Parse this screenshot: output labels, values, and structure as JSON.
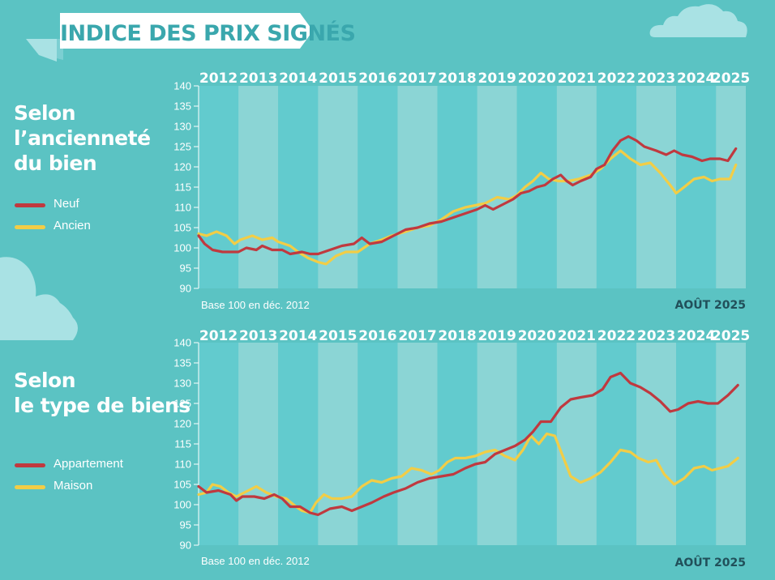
{
  "page_title": "INDICE DES PRIX SIGNÉS",
  "colors": {
    "background": "#5bc3c3",
    "band_light": "#8bd5d5",
    "band_dark": "#62cbce",
    "red_series": "#c0393f",
    "yellow_series": "#f2cd46"
  },
  "chart_data": [
    {
      "type": "line",
      "title": "Selon l’ancienneté du bien",
      "title_lines": [
        "Selon",
        "l’ancienneté",
        "du bien"
      ],
      "years": [
        "2012",
        "2013",
        "2014",
        "2015",
        "2016",
        "2017",
        "2018",
        "2019",
        "2020",
        "2021",
        "2022",
        "2023",
        "2024",
        "2025"
      ],
      "yticks": [
        90,
        95,
        100,
        105,
        110,
        115,
        120,
        125,
        130,
        135,
        140
      ],
      "ylim": [
        90,
        140
      ],
      "xlim": [
        2012,
        2025.75
      ],
      "note": "Base 100 en déc. 2012",
      "date": "AOÛT 2025",
      "legend": [
        {
          "name": "Neuf",
          "color": "#c0393f"
        },
        {
          "name": "Ancien",
          "color": "#f2cd46"
        }
      ],
      "series": [
        {
          "name": "Neuf",
          "color": "#c0393f",
          "points": [
            [
              2012.0,
              103
            ],
            [
              2012.15,
              101
            ],
            [
              2012.35,
              99.5
            ],
            [
              2012.6,
              99
            ],
            [
              2013.0,
              99
            ],
            [
              2013.2,
              100
            ],
            [
              2013.45,
              99.5
            ],
            [
              2013.6,
              100.5
            ],
            [
              2013.85,
              99.5
            ],
            [
              2014.1,
              99.5
            ],
            [
              2014.3,
              98.5
            ],
            [
              2014.6,
              99
            ],
            [
              2014.8,
              98.5
            ],
            [
              2015.0,
              98.5
            ],
            [
              2015.3,
              99.5
            ],
            [
              2015.6,
              100.5
            ],
            [
              2015.9,
              101
            ],
            [
              2016.1,
              102.5
            ],
            [
              2016.3,
              101
            ],
            [
              2016.6,
              101.5
            ],
            [
              2016.9,
              103
            ],
            [
              2017.2,
              104.5
            ],
            [
              2017.5,
              105
            ],
            [
              2017.8,
              106
            ],
            [
              2018.1,
              106.5
            ],
            [
              2018.4,
              107.5
            ],
            [
              2018.7,
              108.5
            ],
            [
              2019.0,
              109.5
            ],
            [
              2019.2,
              110.5
            ],
            [
              2019.4,
              109.5
            ],
            [
              2019.6,
              110.5
            ],
            [
              2019.9,
              112
            ],
            [
              2020.1,
              113.5
            ],
            [
              2020.3,
              114
            ],
            [
              2020.5,
              115
            ],
            [
              2020.7,
              115.5
            ],
            [
              2020.9,
              117
            ],
            [
              2021.1,
              118
            ],
            [
              2021.25,
              116.5
            ],
            [
              2021.4,
              115.5
            ],
            [
              2021.6,
              116.5
            ],
            [
              2021.85,
              117.5
            ],
            [
              2022.0,
              119.5
            ],
            [
              2022.2,
              120.5
            ],
            [
              2022.4,
              124
            ],
            [
              2022.6,
              126.5
            ],
            [
              2022.8,
              127.5
            ],
            [
              2023.0,
              126.5
            ],
            [
              2023.2,
              125
            ],
            [
              2023.5,
              124
            ],
            [
              2023.75,
              123
            ],
            [
              2023.95,
              124
            ],
            [
              2024.15,
              123
            ],
            [
              2024.4,
              122.5
            ],
            [
              2024.65,
              121.5
            ],
            [
              2024.85,
              122
            ],
            [
              2025.1,
              122
            ],
            [
              2025.3,
              121.5
            ],
            [
              2025.5,
              124.5
            ]
          ]
        },
        {
          "name": "Ancien",
          "color": "#f2cd46",
          "points": [
            [
              2012.0,
              103.5
            ],
            [
              2012.2,
              103
            ],
            [
              2012.45,
              104
            ],
            [
              2012.7,
              103
            ],
            [
              2012.9,
              101
            ],
            [
              2013.05,
              102
            ],
            [
              2013.35,
              103
            ],
            [
              2013.6,
              102
            ],
            [
              2013.85,
              102.5
            ],
            [
              2014.0,
              101.5
            ],
            [
              2014.15,
              101
            ],
            [
              2014.3,
              100.5
            ],
            [
              2014.5,
              99
            ],
            [
              2014.75,
              97.5
            ],
            [
              2015.0,
              96.5
            ],
            [
              2015.2,
              96
            ],
            [
              2015.45,
              98
            ],
            [
              2015.7,
              99
            ],
            [
              2016.0,
              99
            ],
            [
              2016.3,
              101
            ],
            [
              2016.6,
              102
            ],
            [
              2016.85,
              103
            ],
            [
              2017.2,
              104
            ],
            [
              2017.5,
              105
            ],
            [
              2017.8,
              105.5
            ],
            [
              2018.1,
              107
            ],
            [
              2018.4,
              109
            ],
            [
              2018.7,
              110
            ],
            [
              2018.95,
              110.5
            ],
            [
              2019.2,
              111
            ],
            [
              2019.5,
              112.5
            ],
            [
              2019.8,
              112
            ],
            [
              2020.0,
              113
            ],
            [
              2020.2,
              115
            ],
            [
              2020.4,
              116.5
            ],
            [
              2020.6,
              118.5
            ],
            [
              2020.8,
              117
            ],
            [
              2021.05,
              116.5
            ],
            [
              2021.3,
              116.5
            ],
            [
              2021.55,
              117
            ],
            [
              2021.85,
              118
            ],
            [
              2022.1,
              119.5
            ],
            [
              2022.35,
              122
            ],
            [
              2022.6,
              124
            ],
            [
              2022.85,
              122
            ],
            [
              2023.1,
              120.5
            ],
            [
              2023.35,
              121
            ],
            [
              2023.6,
              118.5
            ],
            [
              2023.85,
              115.5
            ],
            [
              2024.0,
              113.5
            ],
            [
              2024.2,
              115
            ],
            [
              2024.45,
              117
            ],
            [
              2024.7,
              117.5
            ],
            [
              2024.9,
              116.5
            ],
            [
              2025.1,
              117
            ],
            [
              2025.35,
              117
            ],
            [
              2025.5,
              120.5
            ]
          ]
        }
      ]
    },
    {
      "type": "line",
      "title": "Selon le type de biens",
      "title_lines": [
        "Selon",
        "le type de biens"
      ],
      "years": [
        "2012",
        "2013",
        "2014",
        "2015",
        "2016",
        "2017",
        "2018",
        "2019",
        "2020",
        "2021",
        "2022",
        "2023",
        "2024",
        "2025"
      ],
      "yticks": [
        90,
        95,
        100,
        105,
        110,
        115,
        120,
        125,
        130,
        135,
        140
      ],
      "ylim": [
        90,
        140
      ],
      "xlim": [
        2012,
        2025.75
      ],
      "note": "Base 100 en déc. 2012",
      "date": "AOÛT 2025",
      "legend": [
        {
          "name": "Appartement",
          "color": "#c0393f"
        },
        {
          "name": "Maison",
          "color": "#f2cd46"
        }
      ],
      "series": [
        {
          "name": "Appartement",
          "color": "#c0393f",
          "points": [
            [
              2012.0,
              104.5
            ],
            [
              2012.2,
              103
            ],
            [
              2012.5,
              103.5
            ],
            [
              2012.8,
              102.5
            ],
            [
              2012.95,
              101
            ],
            [
              2013.1,
              102
            ],
            [
              2013.4,
              102
            ],
            [
              2013.65,
              101.5
            ],
            [
              2013.9,
              102.5
            ],
            [
              2014.1,
              101.5
            ],
            [
              2014.3,
              99.5
            ],
            [
              2014.55,
              99.5
            ],
            [
              2014.8,
              98
            ],
            [
              2015.0,
              97.5
            ],
            [
              2015.3,
              99
            ],
            [
              2015.6,
              99.5
            ],
            [
              2015.85,
              98.5
            ],
            [
              2016.1,
              99.5
            ],
            [
              2016.35,
              100.5
            ],
            [
              2016.65,
              102
            ],
            [
              2016.9,
              103
            ],
            [
              2017.2,
              104
            ],
            [
              2017.5,
              105.5
            ],
            [
              2017.8,
              106.5
            ],
            [
              2018.1,
              107
            ],
            [
              2018.4,
              107.5
            ],
            [
              2018.7,
              109
            ],
            [
              2018.95,
              110
            ],
            [
              2019.2,
              110.5
            ],
            [
              2019.45,
              112.5
            ],
            [
              2019.7,
              113.5
            ],
            [
              2019.95,
              114.5
            ],
            [
              2020.2,
              116
            ],
            [
              2020.4,
              118
            ],
            [
              2020.6,
              120.5
            ],
            [
              2020.85,
              120.5
            ],
            [
              2021.1,
              124
            ],
            [
              2021.35,
              126
            ],
            [
              2021.6,
              126.5
            ],
            [
              2021.9,
              127
            ],
            [
              2022.15,
              128.5
            ],
            [
              2022.35,
              131.5
            ],
            [
              2022.6,
              132.5
            ],
            [
              2022.85,
              130
            ],
            [
              2023.1,
              129
            ],
            [
              2023.35,
              127.5
            ],
            [
              2023.6,
              125.5
            ],
            [
              2023.85,
              123
            ],
            [
              2024.05,
              123.5
            ],
            [
              2024.3,
              125
            ],
            [
              2024.55,
              125.5
            ],
            [
              2024.8,
              125
            ],
            [
              2025.05,
              125
            ],
            [
              2025.3,
              127
            ],
            [
              2025.55,
              129.5
            ]
          ]
        },
        {
          "name": "Maison",
          "color": "#f2cd46",
          "points": [
            [
              2012.0,
              102.5
            ],
            [
              2012.2,
              103
            ],
            [
              2012.35,
              105
            ],
            [
              2012.55,
              104.5
            ],
            [
              2012.75,
              103
            ],
            [
              2012.95,
              102
            ],
            [
              2013.15,
              103
            ],
            [
              2013.45,
              104.5
            ],
            [
              2013.7,
              103
            ],
            [
              2013.95,
              102
            ],
            [
              2014.2,
              101.5
            ],
            [
              2014.45,
              99.5
            ],
            [
              2014.6,
              98.5
            ],
            [
              2014.8,
              98
            ],
            [
              2014.95,
              100.5
            ],
            [
              2015.15,
              102.5
            ],
            [
              2015.35,
              101.5
            ],
            [
              2015.6,
              101.5
            ],
            [
              2015.85,
              102
            ],
            [
              2016.1,
              104.5
            ],
            [
              2016.35,
              106
            ],
            [
              2016.6,
              105.5
            ],
            [
              2016.85,
              106.5
            ],
            [
              2017.1,
              107
            ],
            [
              2017.35,
              109
            ],
            [
              2017.6,
              108.5
            ],
            [
              2017.85,
              107.5
            ],
            [
              2018.05,
              108.5
            ],
            [
              2018.25,
              110.5
            ],
            [
              2018.45,
              111.5
            ],
            [
              2018.7,
              111.5
            ],
            [
              2018.95,
              112
            ],
            [
              2019.2,
              113
            ],
            [
              2019.45,
              113.5
            ],
            [
              2019.7,
              112
            ],
            [
              2019.95,
              111
            ],
            [
              2020.15,
              113.5
            ],
            [
              2020.35,
              117
            ],
            [
              2020.55,
              115
            ],
            [
              2020.75,
              117.5
            ],
            [
              2020.95,
              117
            ],
            [
              2021.15,
              112
            ],
            [
              2021.35,
              107
            ],
            [
              2021.6,
              105.5
            ],
            [
              2021.85,
              106.5
            ],
            [
              2022.1,
              108
            ],
            [
              2022.35,
              110.5
            ],
            [
              2022.6,
              113.5
            ],
            [
              2022.85,
              113
            ],
            [
              2023.05,
              111.5
            ],
            [
              2023.3,
              110.5
            ],
            [
              2023.5,
              111
            ],
            [
              2023.7,
              107.5
            ],
            [
              2023.95,
              105
            ],
            [
              2024.2,
              106.5
            ],
            [
              2024.45,
              109
            ],
            [
              2024.7,
              109.5
            ],
            [
              2024.9,
              108.5
            ],
            [
              2025.1,
              109
            ],
            [
              2025.3,
              109.5
            ],
            [
              2025.55,
              111.5
            ]
          ]
        }
      ]
    }
  ]
}
